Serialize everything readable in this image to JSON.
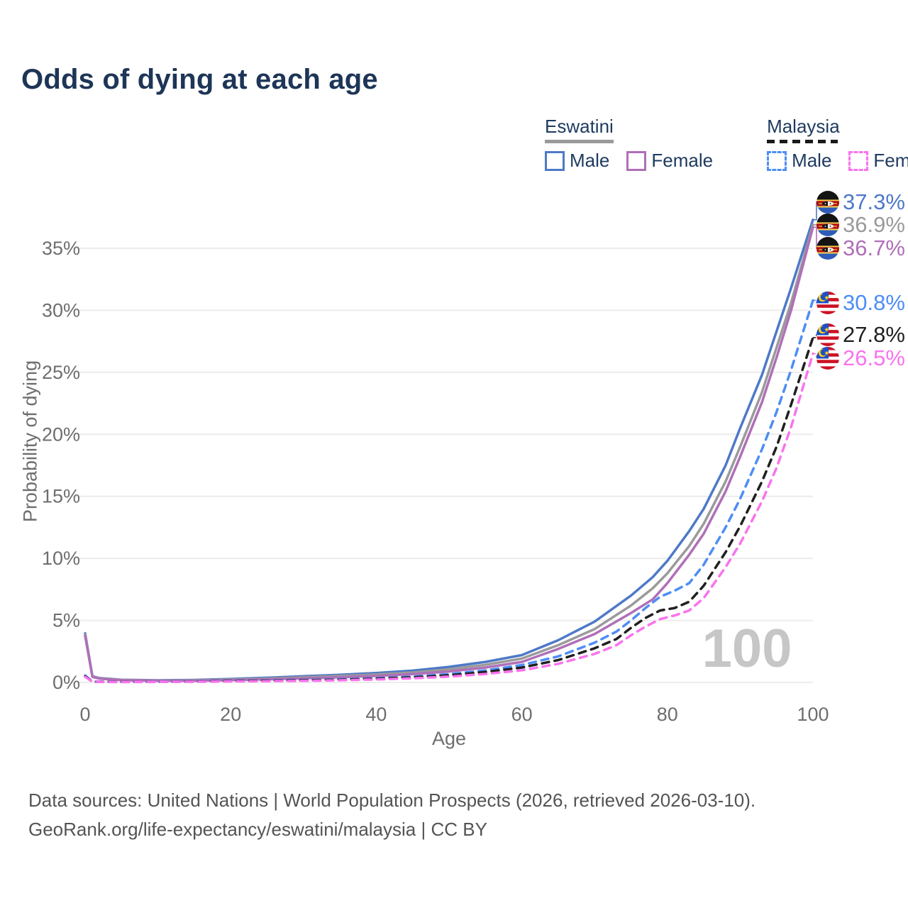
{
  "title": "Odds of dying at each age",
  "legend": {
    "groups": [
      {
        "name": "Eswatini",
        "underline_style": "solid",
        "underline_color": "#9a9a9a",
        "items": [
          {
            "label": "Male",
            "color": "#4e79c7",
            "dash": false
          },
          {
            "label": "Female",
            "color": "#b06fb8",
            "dash": false
          }
        ]
      },
      {
        "name": "Malaysia",
        "underline_style": "dashed",
        "underline_color": "#1a1a1a",
        "items": [
          {
            "label": "Male",
            "color": "#4d8df5",
            "dash": true
          },
          {
            "label": "Female",
            "color": "#f973ee",
            "dash": true
          }
        ]
      }
    ]
  },
  "axes": {
    "y_title": "Probability of dying",
    "x_title": "Age",
    "y_tick_labels": [
      "0%",
      "5%",
      "10%",
      "15%",
      "20%",
      "25%",
      "30%",
      "35%"
    ],
    "x_tick_labels": [
      "0",
      "20",
      "40",
      "60",
      "80",
      "100"
    ]
  },
  "watermark": "100",
  "footer": {
    "line1": "Data sources: United Nations | World Population Prospects (2026, retrieved 2026-03-10).",
    "line2": "GeoRank.org/life-expectancy/eswatini/malaysia | CC BY"
  },
  "chart_data": {
    "type": "line",
    "title": "Odds of dying at each age",
    "xlabel": "Age",
    "ylabel": "Probability of dying",
    "xlim": [
      0,
      100
    ],
    "ylim": [
      0,
      35
    ],
    "yticks": [
      0,
      5,
      10,
      15,
      20,
      25,
      30,
      35
    ],
    "xticks": [
      0,
      20,
      40,
      60,
      80,
      100
    ],
    "grid": "horizontal",
    "legend_position": "top-right",
    "hovered_age": 100,
    "series": [
      {
        "name": "Eswatini Male",
        "style": "solid",
        "color": "#4e79c7",
        "flag": "eswatini",
        "end_label": "37.3%",
        "end_value": 37.3,
        "points": [
          [
            0,
            3.95
          ],
          [
            1,
            0.5
          ],
          [
            2,
            0.35
          ],
          [
            5,
            0.22
          ],
          [
            10,
            0.17
          ],
          [
            15,
            0.2
          ],
          [
            20,
            0.28
          ],
          [
            25,
            0.38
          ],
          [
            30,
            0.5
          ],
          [
            35,
            0.62
          ],
          [
            40,
            0.76
          ],
          [
            45,
            0.95
          ],
          [
            50,
            1.25
          ],
          [
            55,
            1.65
          ],
          [
            60,
            2.2
          ],
          [
            65,
            3.4
          ],
          [
            70,
            4.9
          ],
          [
            75,
            7.0
          ],
          [
            78,
            8.5
          ],
          [
            80,
            9.8
          ],
          [
            83,
            12.2
          ],
          [
            85,
            14.0
          ],
          [
            88,
            17.5
          ],
          [
            90,
            20.5
          ],
          [
            93,
            24.8
          ],
          [
            95,
            28.3
          ],
          [
            97,
            31.8
          ],
          [
            100,
            37.3
          ]
        ]
      },
      {
        "name": "Eswatini Both sexes",
        "style": "solid",
        "color": "#9a9a9a",
        "flag": "eswatini",
        "end_label": "36.9%",
        "end_value": 36.9,
        "points": [
          [
            0,
            3.85
          ],
          [
            1,
            0.47
          ],
          [
            2,
            0.33
          ],
          [
            5,
            0.2
          ],
          [
            10,
            0.15
          ],
          [
            15,
            0.17
          ],
          [
            20,
            0.23
          ],
          [
            25,
            0.31
          ],
          [
            30,
            0.41
          ],
          [
            35,
            0.52
          ],
          [
            40,
            0.64
          ],
          [
            45,
            0.8
          ],
          [
            50,
            1.06
          ],
          [
            55,
            1.42
          ],
          [
            60,
            1.92
          ],
          [
            65,
            3.0
          ],
          [
            70,
            4.3
          ],
          [
            75,
            6.2
          ],
          [
            78,
            7.6
          ],
          [
            80,
            8.8
          ],
          [
            83,
            11.0
          ],
          [
            85,
            12.8
          ],
          [
            88,
            16.2
          ],
          [
            90,
            19.0
          ],
          [
            93,
            23.4
          ],
          [
            95,
            27.0
          ],
          [
            97,
            30.6
          ],
          [
            100,
            36.9
          ]
        ]
      },
      {
        "name": "Eswatini Female",
        "style": "solid",
        "color": "#b06fb8",
        "flag": "eswatini",
        "end_label": "36.7%",
        "end_value": 36.7,
        "points": [
          [
            0,
            3.75
          ],
          [
            1,
            0.44
          ],
          [
            2,
            0.3
          ],
          [
            5,
            0.18
          ],
          [
            10,
            0.13
          ],
          [
            15,
            0.14
          ],
          [
            20,
            0.19
          ],
          [
            25,
            0.25
          ],
          [
            30,
            0.33
          ],
          [
            35,
            0.42
          ],
          [
            40,
            0.52
          ],
          [
            45,
            0.67
          ],
          [
            50,
            0.88
          ],
          [
            55,
            1.2
          ],
          [
            60,
            1.65
          ],
          [
            65,
            2.7
          ],
          [
            70,
            3.9
          ],
          [
            75,
            5.6
          ],
          [
            78,
            6.7
          ],
          [
            80,
            8.0
          ],
          [
            83,
            10.3
          ],
          [
            85,
            12.0
          ],
          [
            88,
            15.4
          ],
          [
            90,
            18.2
          ],
          [
            93,
            22.6
          ],
          [
            95,
            26.2
          ],
          [
            97,
            30.0
          ],
          [
            100,
            36.7
          ]
        ]
      },
      {
        "name": "Malaysia Male",
        "style": "dashed",
        "color": "#4d8df5",
        "flag": "malaysia",
        "end_label": "30.8%",
        "end_value": 30.8,
        "points": [
          [
            0,
            0.55
          ],
          [
            1,
            0.07
          ],
          [
            2,
            0.05
          ],
          [
            5,
            0.04
          ],
          [
            10,
            0.05
          ],
          [
            15,
            0.09
          ],
          [
            20,
            0.13
          ],
          [
            25,
            0.16
          ],
          [
            30,
            0.2
          ],
          [
            35,
            0.26
          ],
          [
            40,
            0.34
          ],
          [
            45,
            0.47
          ],
          [
            50,
            0.67
          ],
          [
            55,
            0.97
          ],
          [
            60,
            1.4
          ],
          [
            65,
            2.1
          ],
          [
            70,
            3.2
          ],
          [
            73,
            4.1
          ],
          [
            75,
            5.0
          ],
          [
            77,
            6.0
          ],
          [
            79,
            6.9
          ],
          [
            81,
            7.4
          ],
          [
            83,
            8.0
          ],
          [
            85,
            9.5
          ],
          [
            88,
            12.5
          ],
          [
            90,
            14.8
          ],
          [
            93,
            18.8
          ],
          [
            95,
            21.8
          ],
          [
            97,
            25.2
          ],
          [
            100,
            30.8
          ]
        ]
      },
      {
        "name": "Malaysia Both sexes",
        "style": "dashed",
        "color": "#1f1f1f",
        "flag": "malaysia",
        "end_label": "27.8%",
        "end_value": 27.8,
        "points": [
          [
            0,
            0.5
          ],
          [
            1,
            0.06
          ],
          [
            2,
            0.05
          ],
          [
            5,
            0.04
          ],
          [
            10,
            0.04
          ],
          [
            15,
            0.07
          ],
          [
            20,
            0.11
          ],
          [
            25,
            0.14
          ],
          [
            30,
            0.17
          ],
          [
            35,
            0.22
          ],
          [
            40,
            0.3
          ],
          [
            45,
            0.41
          ],
          [
            50,
            0.58
          ],
          [
            55,
            0.84
          ],
          [
            60,
            1.2
          ],
          [
            65,
            1.8
          ],
          [
            70,
            2.75
          ],
          [
            73,
            3.5
          ],
          [
            75,
            4.4
          ],
          [
            77,
            5.2
          ],
          [
            79,
            5.8
          ],
          [
            81,
            6.0
          ],
          [
            83,
            6.5
          ],
          [
            85,
            7.8
          ],
          [
            88,
            10.5
          ],
          [
            90,
            12.6
          ],
          [
            93,
            16.2
          ],
          [
            95,
            19.0
          ],
          [
            97,
            22.4
          ],
          [
            100,
            27.8
          ]
        ]
      },
      {
        "name": "Malaysia Female",
        "style": "dashed",
        "color": "#f973ee",
        "flag": "malaysia",
        "end_label": "26.5%",
        "end_value": 26.5,
        "points": [
          [
            0,
            0.45
          ],
          [
            1,
            0.06
          ],
          [
            2,
            0.04
          ],
          [
            5,
            0.03
          ],
          [
            10,
            0.04
          ],
          [
            15,
            0.05
          ],
          [
            20,
            0.08
          ],
          [
            25,
            0.1
          ],
          [
            30,
            0.13
          ],
          [
            35,
            0.17
          ],
          [
            40,
            0.24
          ],
          [
            45,
            0.33
          ],
          [
            50,
            0.47
          ],
          [
            55,
            0.68
          ],
          [
            60,
            0.98
          ],
          [
            65,
            1.5
          ],
          [
            70,
            2.3
          ],
          [
            73,
            3.0
          ],
          [
            75,
            3.8
          ],
          [
            77,
            4.5
          ],
          [
            79,
            5.1
          ],
          [
            81,
            5.4
          ],
          [
            83,
            5.8
          ],
          [
            85,
            6.8
          ],
          [
            88,
            9.3
          ],
          [
            90,
            11.2
          ],
          [
            93,
            14.6
          ],
          [
            95,
            17.3
          ],
          [
            97,
            20.6
          ],
          [
            100,
            26.5
          ]
        ]
      }
    ]
  }
}
